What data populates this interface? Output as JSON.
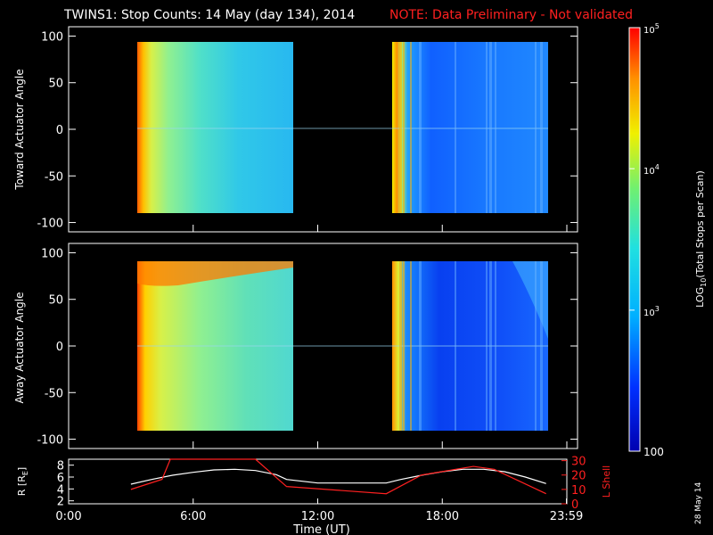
{
  "title": {
    "main": "TWINS1: Stop Counts: 14 May (day 134), 2014",
    "note": "NOTE: Data Preliminary - Not validated"
  },
  "footer": {
    "date_stamp": "28 May 14"
  },
  "colors": {
    "note": "#ff2020",
    "orbit_r": "#ffffff",
    "orbit_l": "#ff2020",
    "axes": "#ffffff"
  },
  "chart_data": [
    {
      "type": "heatmap",
      "ylabel": "Toward Actuator Angle",
      "ylim": [
        -110,
        110
      ],
      "yticks": [
        "100",
        "50",
        "0",
        "-50",
        "-100"
      ],
      "ytick_values": [
        100,
        50,
        0,
        -50,
        -100
      ],
      "x_range_hours": [
        0,
        24
      ],
      "data_blocks": [
        {
          "start": 3.0,
          "end": 10.5,
          "y_range": [
            -88,
            90
          ],
          "level": 0.55
        },
        {
          "start": 15.3,
          "end": 23.0,
          "y_range": [
            -88,
            90
          ],
          "level": 0.3
        }
      ]
    },
    {
      "type": "heatmap",
      "ylabel": "Away Actuator Angle",
      "ylim": [
        -110,
        110
      ],
      "yticks": [
        "100",
        "50",
        "0",
        "-50",
        "-100"
      ],
      "ytick_values": [
        100,
        50,
        0,
        -50,
        -100
      ],
      "x_range_hours": [
        0,
        24
      ],
      "data_blocks": [
        {
          "start": 3.0,
          "end": 10.5,
          "y_range": [
            -88,
            90
          ],
          "level": 0.6
        },
        {
          "start": 15.3,
          "end": 23.0,
          "y_range": [
            -88,
            90
          ],
          "level": 0.3
        }
      ]
    },
    {
      "type": "line",
      "ylabel_left": "R [R",
      "ylabel_left_sub": "E",
      "ylabel_left_end": "]",
      "ylabel_right": "L Shell",
      "xlabel": "Time (UT)",
      "xticks": [
        "0:00",
        "6:00",
        "12:00",
        "18:00",
        "23:59"
      ],
      "xtick_values": [
        0,
        6,
        12,
        18,
        23.98
      ],
      "yticks_left": [
        "8",
        "6",
        "4",
        "2"
      ],
      "ytick_left_values": [
        8,
        6,
        4,
        2
      ],
      "ylim_left": [
        1.5,
        9
      ],
      "yticks_right": [
        "30",
        "20",
        "10",
        "0"
      ],
      "ytick_right_values": [
        30,
        20,
        10,
        0
      ],
      "ylim_right": [
        0,
        31
      ],
      "series": [
        {
          "name": "R",
          "x": [
            3,
            4,
            5,
            6,
            7,
            8,
            9,
            10,
            10.5,
            12,
            14,
            15.3,
            16,
            17,
            18,
            19,
            20,
            21,
            22,
            23
          ],
          "y": [
            4.8,
            5.6,
            6.3,
            6.8,
            7.2,
            7.3,
            7.1,
            6.4,
            5.6,
            5.0,
            5.0,
            5.0,
            5.6,
            6.3,
            6.9,
            7.3,
            7.3,
            6.9,
            6.0,
            4.9
          ]
        },
        {
          "name": "L Shell",
          "x": [
            3,
            4.5,
            4.9,
            9.0,
            10.5,
            15.3,
            17,
            19.5,
            20.5,
            23
          ],
          "y": [
            10,
            17,
            31,
            31,
            12,
            7,
            20,
            26,
            24,
            7
          ]
        }
      ]
    }
  ],
  "colorbar": {
    "label": "LOG10(Total Stops per Scan)",
    "label_prefix": "LOG",
    "label_sub": "10",
    "label_suffix": "(Total Stops per Scan)",
    "ticks": [
      {
        "text": "10",
        "sup": "5",
        "frac": 1.0
      },
      {
        "text": "10",
        "sup": "4",
        "frac": 0.667
      },
      {
        "text": "10",
        "sup": "3",
        "frac": 0.333
      },
      {
        "text": "100",
        "sup": "",
        "frac": 0.0
      }
    ],
    "range": [
      100,
      100000
    ],
    "scale": "log"
  }
}
